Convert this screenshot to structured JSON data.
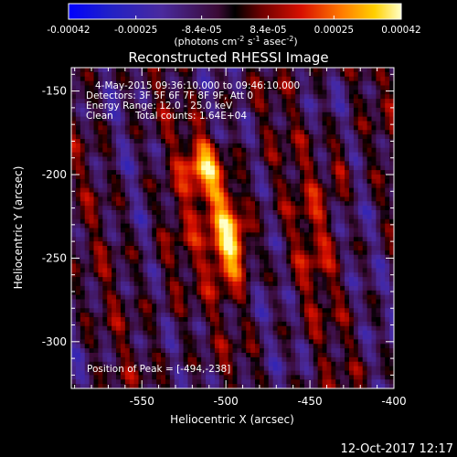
{
  "colorbar": {
    "ticks": [
      "-0.00042",
      "-0.00025",
      "-8.4e-05",
      "8.4e-05",
      "0.00025",
      "0.00042"
    ],
    "tick_values": [
      -0.00042,
      -0.00025,
      -8.4e-05,
      8.4e-05,
      0.00025,
      0.00042
    ],
    "range": [
      -0.00042,
      0.00042
    ],
    "units_prefix": "(photons cm",
    "units_sup1": "-2",
    "units_mid1": " s",
    "units_sup2": "-1",
    "units_mid2": " asec",
    "units_sup3": "-2",
    "units_suffix": ")"
  },
  "chart_data": {
    "type": "heatmap",
    "title": "Reconstructed RHESSI Image",
    "xlabel": "Heliocentric X (arcsec)",
    "ylabel": "Heliocentric Y (arcsec)",
    "xlim": [
      -592,
      -400
    ],
    "ylim": [
      -328,
      -136
    ],
    "xticks": [
      -550,
      -500,
      -450,
      -400
    ],
    "xtick_labels": [
      "-550",
      "-500",
      "-450",
      "-400"
    ],
    "yticks": [
      -150,
      -200,
      -250,
      -300
    ],
    "ytick_labels": [
      "-150",
      "-200",
      "-250",
      "-300"
    ],
    "annotations": [
      "4-May-2015 09:36:10.000 to 09:46:10.000",
      "Detectors: 3F 5F 6F 7F 8F 9F, Att 0",
      "Energy Range: 12.0 - 25.0 keV",
      "Clean",
      "Total counts: 1.64E+04"
    ],
    "peak_label": "Position of Peak = [-494,-238]",
    "peak": [
      -494,
      -238
    ],
    "sources": [
      {
        "x": -497,
        "y": -242,
        "sx": 8,
        "sy": 15,
        "amp": 0.00042
      },
      {
        "x": -513,
        "y": -192,
        "sx": 8,
        "sy": 12,
        "amp": 0.0003
      },
      {
        "x": -503,
        "y": -212,
        "sx": 9,
        "sy": 12,
        "amp": 0.00022
      },
      {
        "x": -432,
        "y": -196,
        "sx": 5,
        "sy": 9,
        "amp": 0.00017
      },
      {
        "x": -447,
        "y": -235,
        "sx": 9,
        "sy": 35,
        "amp": 0.00011
      },
      {
        "x": -530,
        "y": -250,
        "sx": 10,
        "sy": 30,
        "amp": 0.0001
      }
    ]
  },
  "timestamp": "12-Oct-2017 12:17"
}
